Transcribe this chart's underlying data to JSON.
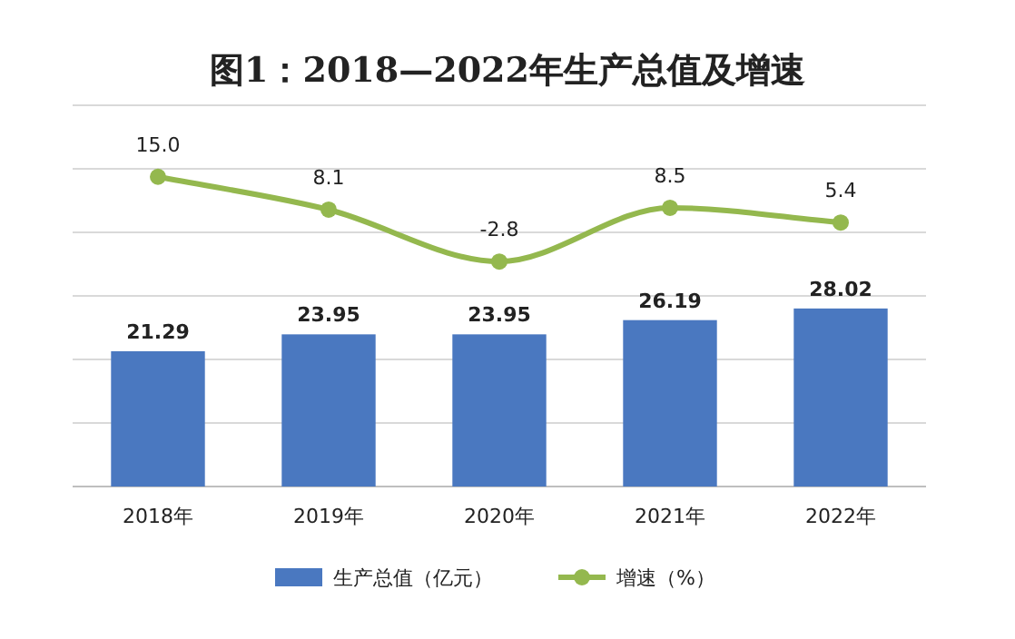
{
  "chart_data": {
    "type": "bar",
    "title": "图1：2018—2022年生产总值及增速",
    "categories": [
      "2018年",
      "2019年",
      "2020年",
      "2021年",
      "2022年"
    ],
    "series": [
      {
        "name": "生产总值（亿元）",
        "color": "#4a78c0",
        "values": [
          21.29,
          23.95,
          23.95,
          26.19,
          28.02
        ]
      },
      {
        "name": "增速（%）",
        "type": "line",
        "axis": "y2",
        "color": "#94b84e",
        "marker": "circle",
        "values": [
          15.0,
          8.1,
          -2.8,
          8.5,
          5.4
        ],
        "value_labels": [
          "15.0",
          "8.1",
          "-2.8",
          "8.5",
          "5.4"
        ]
      }
    ],
    "ylim": [
      0,
      60
    ],
    "yticks": [
      {
        "value": 0,
        "label": null
      },
      {
        "value": 10,
        "label": null
      },
      {
        "value": 20,
        "label": null
      },
      {
        "value": 30,
        "label": null
      },
      {
        "value": 40,
        "label": null
      },
      {
        "value": 50,
        "label": null
      },
      {
        "value": 60,
        "label": null
      }
    ],
    "y2lim": [
      -50,
      30
    ],
    "grid": "y",
    "legend": "bottom",
    "data_labels": true,
    "tick_labels": "x"
  }
}
